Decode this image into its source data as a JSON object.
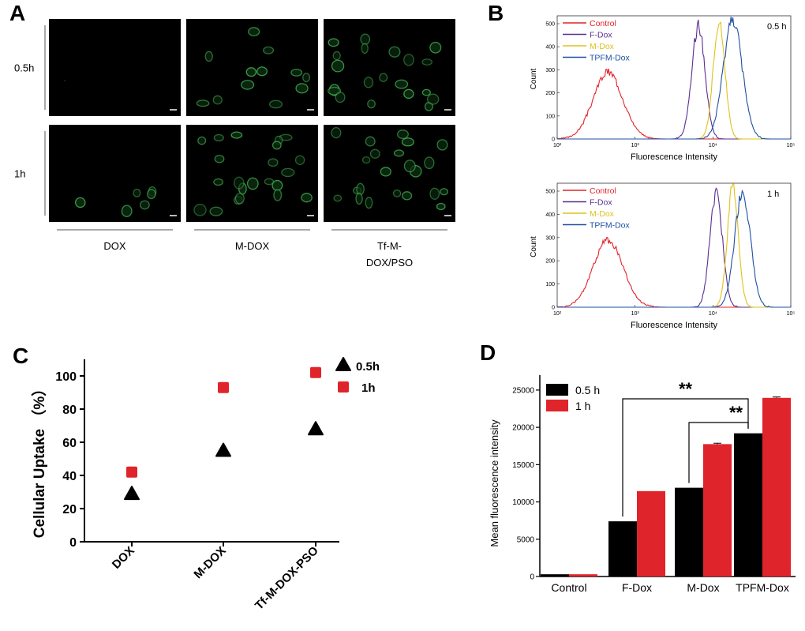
{
  "chart_data": [
    {
      "panel": "A",
      "type": "image_grid",
      "rows": [
        "0.5h",
        "1h"
      ],
      "columns": [
        "DOX",
        "M-DOX",
        "Tf-M-\nDOX/PSO"
      ],
      "cell_density": [
        [
          0,
          12,
          20
        ],
        [
          6,
          22,
          22
        ]
      ],
      "colors": {
        "background": "#000000",
        "cell_stain": "#3fa34a"
      }
    },
    {
      "panel": "B",
      "type": "line",
      "subtype": "flow-cytometry-histogram",
      "xlabel": "Fluorescence Intensity",
      "ylabel": "Count",
      "x_scale": "log",
      "xlim": [
        100,
        100000
      ],
      "xticks": [
        "10²",
        "10³",
        "10⁴",
        "10⁵"
      ],
      "ylim": [
        0,
        500
      ],
      "yticks": [
        0,
        100,
        200,
        300,
        400,
        500
      ],
      "series_colors": {
        "Control": "#e0242b",
        "F-Dox": "#5b2d91",
        "M-Dox": "#e0c21a",
        "TPFM-Dox": "#1f4fa3"
      },
      "plots": [
        {
          "label": "0.5 h",
          "series": [
            {
              "name": "Control",
              "peak_x": 450,
              "peak_count": 290,
              "width_decades": 0.19
            },
            {
              "name": "F-Dox",
              "peak_x": 6500,
              "peak_count": 490,
              "width_decades": 0.085
            },
            {
              "name": "M-Dox",
              "peak_x": 12000,
              "peak_count": 510,
              "width_decades": 0.075
            },
            {
              "name": "TPFM-Dox",
              "peak_x": 18000,
              "peak_count": 520,
              "width_decades": 0.12
            }
          ]
        },
        {
          "label": "1 h",
          "series": [
            {
              "name": "Control",
              "peak_x": 450,
              "peak_count": 290,
              "width_decades": 0.19
            },
            {
              "name": "F-Dox",
              "peak_x": 11000,
              "peak_count": 490,
              "width_decades": 0.08
            },
            {
              "name": "M-Dox",
              "peak_x": 18000,
              "peak_count": 520,
              "width_decades": 0.07
            },
            {
              "name": "TPFM-Dox",
              "peak_x": 24000,
              "peak_count": 500,
              "width_decades": 0.1
            }
          ]
        }
      ]
    },
    {
      "panel": "C",
      "type": "scatter",
      "title": "",
      "xlabel": "",
      "ylabel": "Cellular Uptake （%）",
      "categories": [
        "DOX",
        "M-DOX",
        "Tf-M-DOX-PSO"
      ],
      "series": [
        {
          "name": "0.5h",
          "marker": "triangle",
          "color": "#000000",
          "values": [
            29,
            55,
            68
          ]
        },
        {
          "name": "1h",
          "marker": "square",
          "color": "#e0242b",
          "values": [
            42,
            93,
            102
          ]
        }
      ],
      "ylim": [
        0,
        110
      ],
      "yticks": [
        0,
        20,
        40,
        60,
        80,
        100
      ],
      "legend": "top-right"
    },
    {
      "panel": "D",
      "type": "bar",
      "xlabel": "",
      "ylabel": "Mean fluorescence intensity",
      "categories": [
        "Control",
        "F-Dox",
        "M-Dox",
        "TPFM-Dox"
      ],
      "series": [
        {
          "name": "0.5 h",
          "color": "#000000",
          "values": [
            300,
            7400,
            11900,
            19200
          ]
        },
        {
          "name": "1 h",
          "color": "#e0242b",
          "values": [
            300,
            11450,
            17750,
            23950
          ]
        }
      ],
      "errors_1h": [
        0,
        0,
        120,
        120
      ],
      "ylim": [
        0,
        27000
      ],
      "yticks": [
        0,
        5000,
        10000,
        15000,
        20000,
        25000
      ],
      "legend": "top-left",
      "significance": [
        {
          "from": "F-Dox",
          "to": "TPFM-Dox",
          "label": "**"
        },
        {
          "from": "M-Dox",
          "to": "TPFM-Dox",
          "label": "**"
        }
      ]
    }
  ]
}
